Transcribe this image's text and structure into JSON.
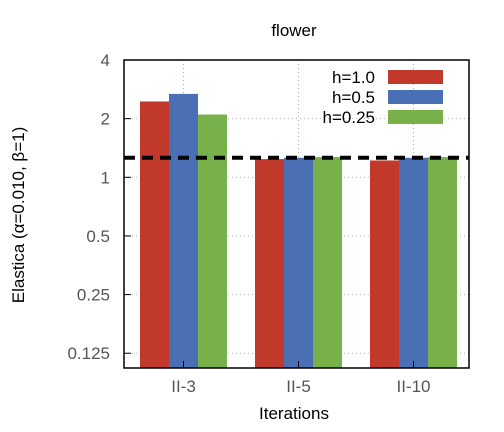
{
  "chart_data": {
    "type": "bar",
    "title": "flower",
    "xlabel": "Iterations",
    "ylabel": "Elastica (α=0.010, β=1)",
    "y_scale": "log2",
    "ylim": [
      0.105,
      4
    ],
    "y_ticks": [
      {
        "value": 0.125,
        "label": "0.125"
      },
      {
        "value": 0.25,
        "label": "0.25"
      },
      {
        "value": 0.5,
        "label": "0.5"
      },
      {
        "value": 1,
        "label": "1"
      },
      {
        "value": 2,
        "label": "2"
      },
      {
        "value": 4,
        "label": "4"
      }
    ],
    "categories": [
      "II-3",
      "II-5",
      "II-10"
    ],
    "series": [
      {
        "name": "h=1.0",
        "color": "#c0392b",
        "values": [
          2.45,
          1.24,
          1.22
        ]
      },
      {
        "name": "h=0.5",
        "color": "#4a6fb5",
        "values": [
          2.68,
          1.26,
          1.26
        ]
      },
      {
        "name": "h=0.25",
        "color": "#78b04a",
        "values": [
          2.1,
          1.27,
          1.27
        ]
      }
    ],
    "reference_line": {
      "value": 1.26,
      "style": "dashed",
      "color": "#000000"
    },
    "grid": true,
    "legend_position": "top-right"
  }
}
